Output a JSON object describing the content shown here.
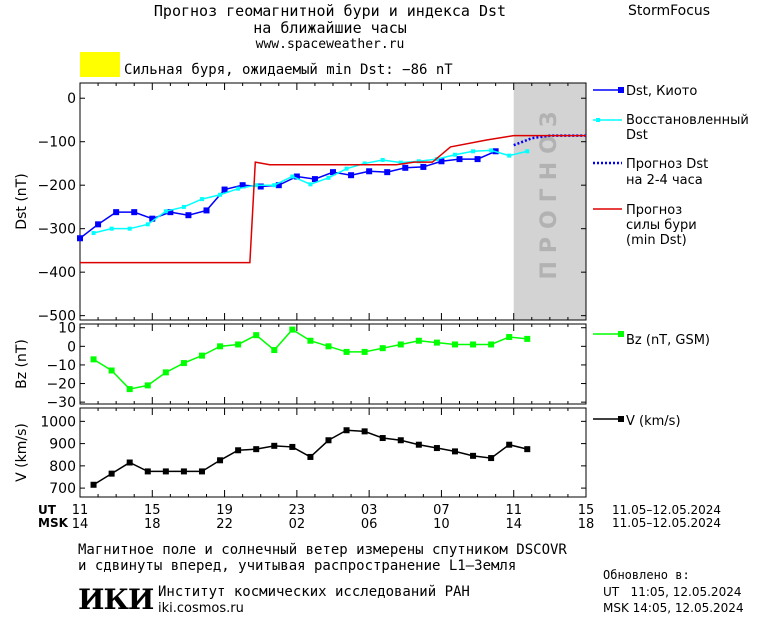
{
  "header": {
    "title_line1": "Прогноз геомагнитной бури и индекса Dst",
    "title_line2": "на ближайшие часы",
    "website": "www.spaceweather.ru",
    "brand": "StormFocus"
  },
  "status": {
    "text": "Сильная буря, ожидаемый min Dst: −86 nT",
    "badge_color": "#ffff00"
  },
  "legend": {
    "dst_kyoto": "Dst, Киото",
    "restored_line1": "Восстановленный",
    "restored_line2": "Dst",
    "forecast_dst_line1": "Прогноз Dst",
    "forecast_dst_line2": "на 2-4 часа",
    "storm_forecast_line1": "Прогноз",
    "storm_forecast_line2": "силы бури",
    "storm_forecast_line3": "(min Dst)",
    "bz": "Bz (nT, GSM)",
    "v": "V (km/s)"
  },
  "forecast_band_label": "ПРОГНОЗ",
  "colors": {
    "dst_kyoto": "#0000ff",
    "restored": "#00ffff",
    "forecast_dst": "#0000ff",
    "storm_forecast": "#dd0000",
    "bz": "#00ff00",
    "v": "#000000",
    "forecast_band": "#d3d3d3"
  },
  "x_axis": {
    "ut_label": "UT",
    "msk_label": "MSK",
    "ut_ticks": [
      "11",
      "15",
      "19",
      "23",
      "03",
      "07",
      "11",
      "15"
    ],
    "msk_ticks": [
      "14",
      "18",
      "22",
      "02",
      "06",
      "10",
      "14",
      "18"
    ],
    "date_range_ut": "11.05–12.05.2024",
    "date_range_msk": "11.05–12.05.2024"
  },
  "footer": {
    "note_line1": "Магнитное поле и солнечный ветер измерены спутником DSCOVR",
    "note_line2": "и сдвинуты вперед, учитывая распространение L1–Земля",
    "institute": "Институт космических исследований РАН",
    "institute_site": "iki.cosmos.ru",
    "logo_text": "ИКИ",
    "updated_label": "Обновлено в:",
    "updated_ut": "UT   11:05, 12.05.2024",
    "updated_msk": "MSK 14:05, 12.05.2024"
  },
  "chart_data": [
    {
      "type": "line",
      "ylabel": "Dst (nT)",
      "ylim": [
        -510,
        35
      ],
      "yticks": [
        0,
        -100,
        -200,
        -300,
        -400,
        -500
      ],
      "x_unit": "hours since 11 UT 11.05.2024",
      "xlim": [
        0,
        28
      ],
      "forecast_band": [
        24,
        28
      ],
      "series": [
        {
          "name": "Dst, Киото",
          "x": [
            0,
            1,
            2,
            3,
            4,
            5,
            6,
            7,
            8,
            9,
            10,
            11,
            12,
            13,
            14,
            15,
            16,
            17,
            18,
            19,
            20,
            21,
            22,
            23
          ],
          "values": [
            -322,
            -290,
            -262,
            -262,
            -277,
            -262,
            -269,
            -258,
            -210,
            -200,
            -203,
            -200,
            -180,
            -186,
            -170,
            -177,
            -168,
            -170,
            -160,
            -158,
            -145,
            -140,
            -140,
            -122
          ]
        },
        {
          "name": "Восстановленный Dst",
          "x": [
            0.75,
            1.75,
            2.75,
            3.75,
            4.75,
            5.75,
            6.75,
            7.75,
            8.75,
            9.75,
            10.75,
            11.75,
            12.75,
            13.75,
            14.75,
            15.75,
            16.75,
            17.75,
            18.75,
            19.75,
            20.75,
            21.75,
            22.75,
            23.75,
            24.75
          ],
          "values": [
            -310,
            -300,
            -300,
            -290,
            -260,
            -250,
            -232,
            -222,
            -208,
            -200,
            -200,
            -180,
            -198,
            -183,
            -162,
            -150,
            -142,
            -148,
            -145,
            -140,
            -130,
            -122,
            -120,
            -132,
            -122
          ]
        },
        {
          "name": "Прогноз Dst на 2-4 часа",
          "style": "dotted",
          "x": [
            24,
            25,
            26,
            27,
            28
          ],
          "values": [
            -108,
            -92,
            -86,
            -86,
            -86
          ]
        },
        {
          "name": "Прогноз силы бури (min Dst)",
          "x": [
            0,
            9.4,
            9.7,
            10.5,
            17.5,
            18.5,
            19.5,
            20.5,
            22.5,
            24,
            28
          ],
          "values": [
            -378,
            -378,
            -147,
            -153,
            -153,
            -147,
            -147,
            -112,
            -96,
            -86,
            -86
          ]
        }
      ]
    },
    {
      "type": "line",
      "ylabel": "Bz (nT)",
      "ylim": [
        -31,
        12
      ],
      "yticks": [
        10,
        0,
        -10,
        -20,
        -30
      ],
      "series": [
        {
          "name": "Bz (nT, GSM)",
          "x": [
            0.75,
            1.75,
            2.75,
            3.75,
            4.75,
            5.75,
            6.75,
            7.75,
            8.75,
            9.75,
            10.75,
            11.75,
            12.75,
            13.75,
            14.75,
            15.75,
            16.75,
            17.75,
            18.75,
            19.75,
            20.75,
            21.75,
            22.75,
            23.75,
            24.75
          ],
          "values": [
            -7,
            -13,
            -23,
            -21,
            -14,
            -9,
            -5,
            0,
            1,
            6,
            -2,
            9,
            3,
            0,
            -3,
            -3,
            -1,
            1,
            3,
            2,
            1,
            1,
            1,
            5,
            4
          ]
        }
      ]
    },
    {
      "type": "line",
      "ylabel": "V (km/s)",
      "ylim": [
        660,
        1060
      ],
      "yticks": [
        1000,
        900,
        800,
        700
      ],
      "series": [
        {
          "name": "V (km/s)",
          "x": [
            0.75,
            1.75,
            2.75,
            3.75,
            4.75,
            5.75,
            6.75,
            7.75,
            8.75,
            9.75,
            10.75,
            11.75,
            12.75,
            13.75,
            14.75,
            15.75,
            16.75,
            17.75,
            18.75,
            19.75,
            20.75,
            21.75,
            22.75,
            23.75,
            24.75
          ],
          "values": [
            715,
            765,
            815,
            775,
            775,
            775,
            775,
            825,
            870,
            875,
            890,
            885,
            840,
            915,
            960,
            955,
            925,
            915,
            895,
            880,
            865,
            845,
            835,
            895,
            875
          ]
        }
      ]
    }
  ]
}
